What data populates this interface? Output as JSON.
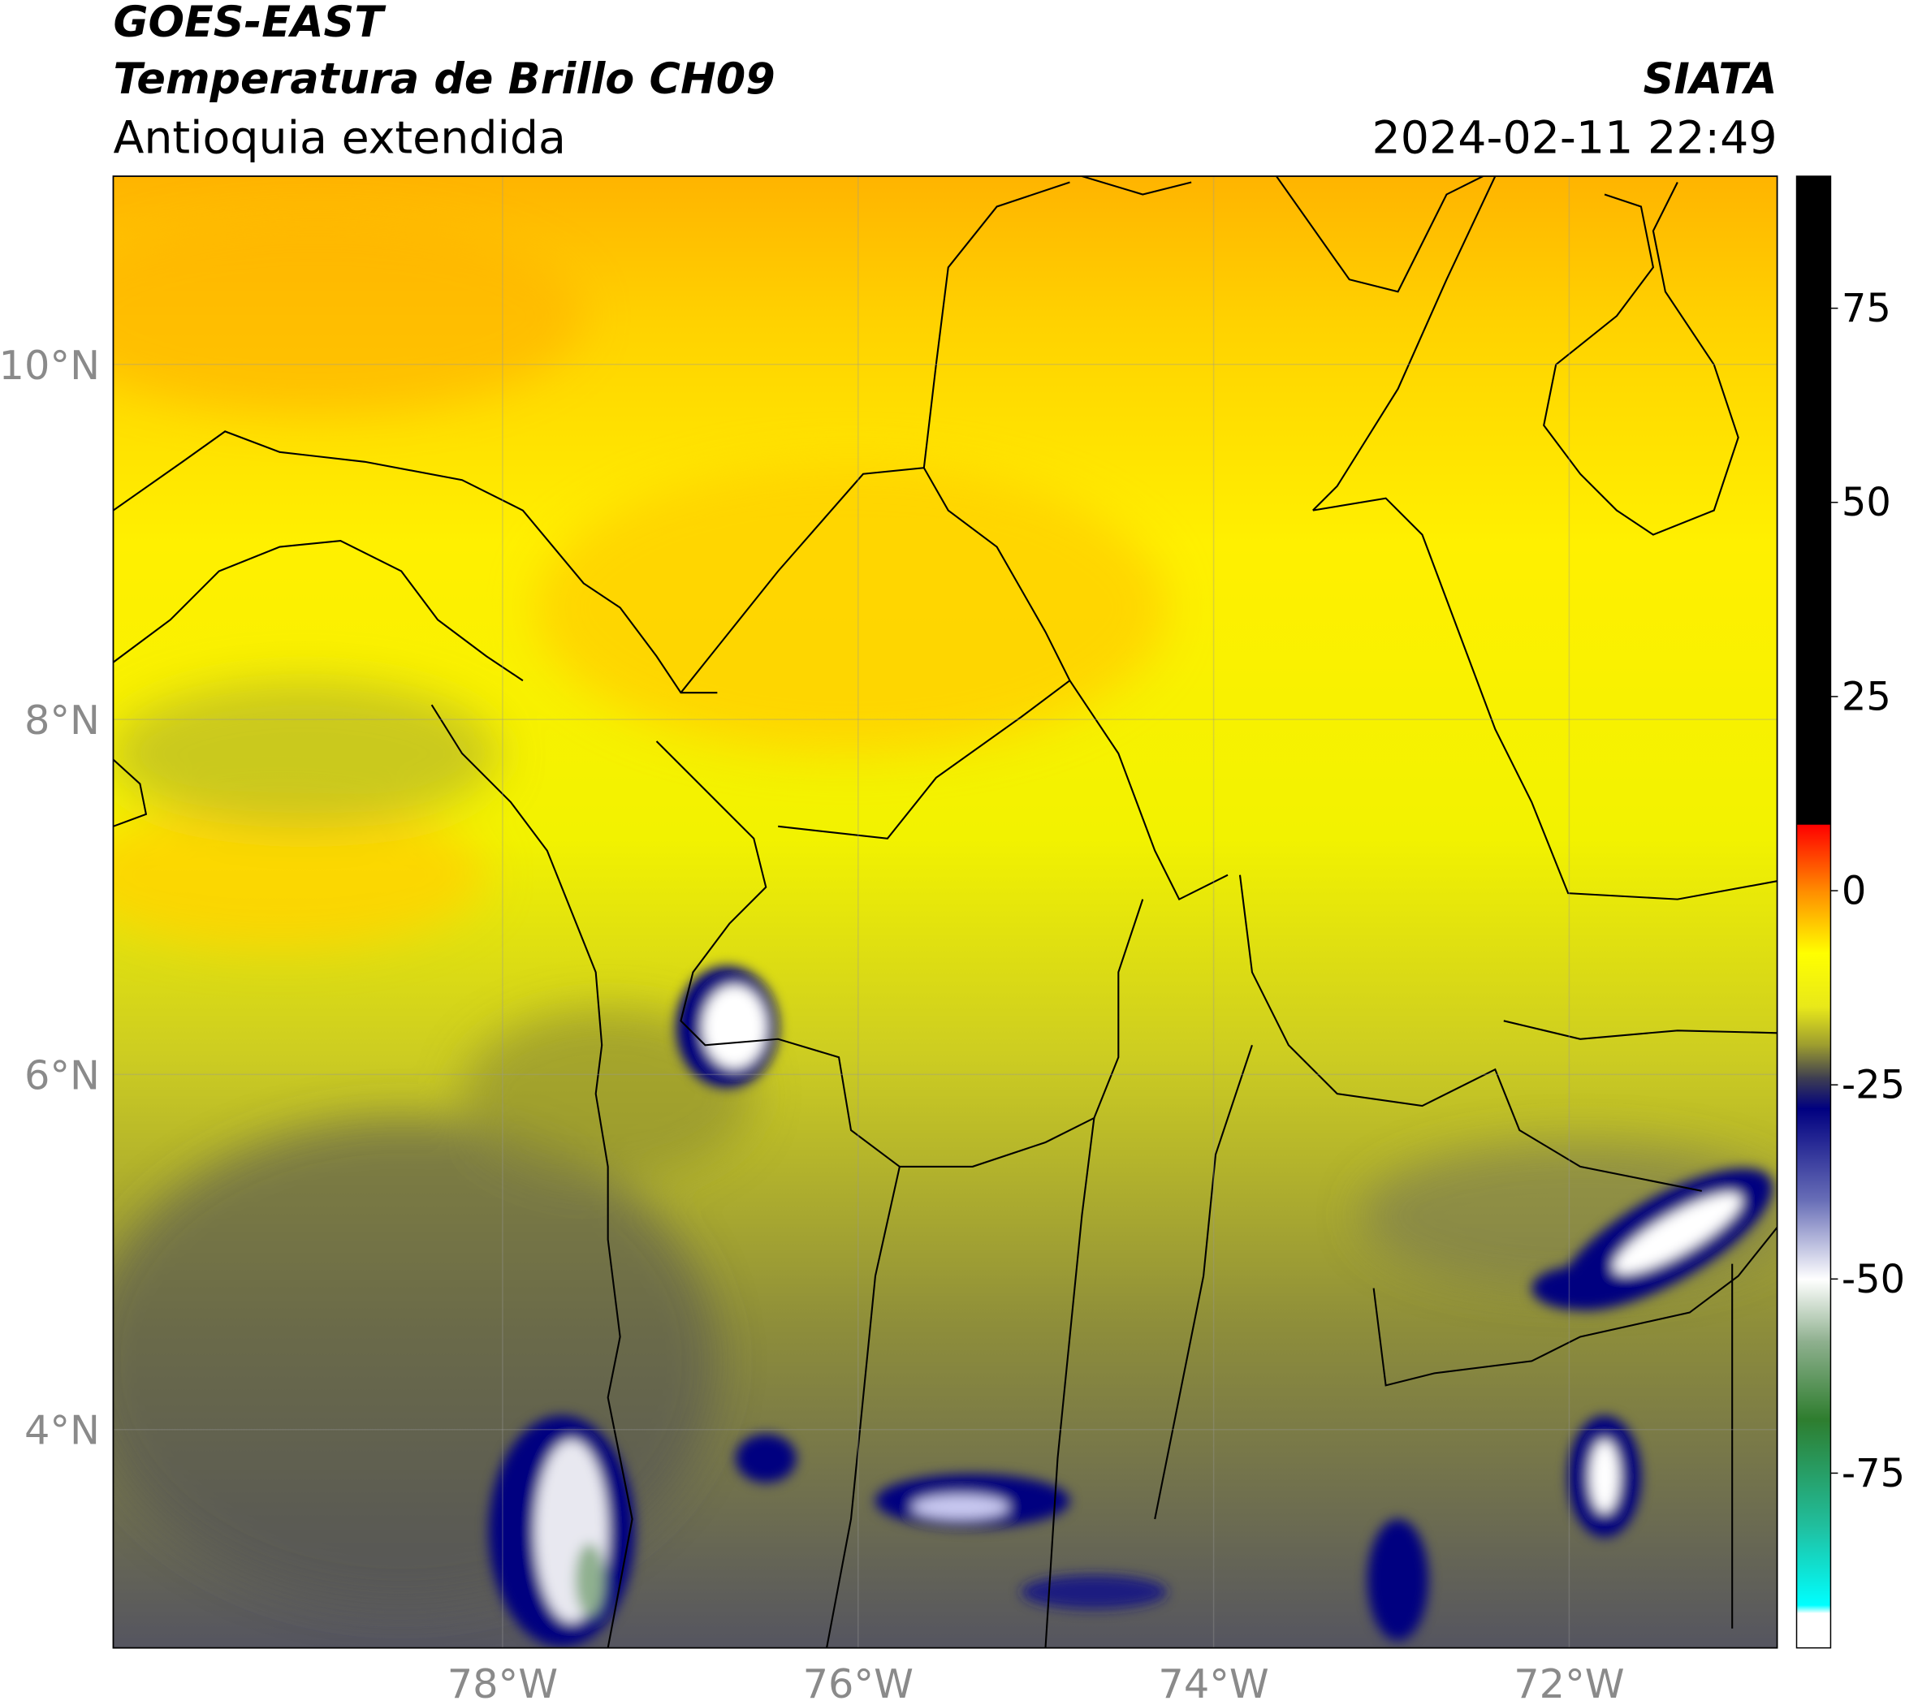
{
  "header": {
    "satellite": "GOES-EAST",
    "product": "Temperatura de Brillo CH09",
    "region": "Antioquia extendida",
    "organization": "SIATA",
    "datetime": "2024-02-11 22:49"
  },
  "map": {
    "xlim": [
      -80.19,
      -70.83
    ],
    "ylim": [
      2.77,
      11.06
    ],
    "grid": true,
    "xticks": [
      {
        "value": -78,
        "label": "78°W"
      },
      {
        "value": -76,
        "label": "76°W"
      },
      {
        "value": -74,
        "label": "74°W"
      },
      {
        "value": -72,
        "label": "72°W"
      }
    ],
    "yticks": [
      {
        "value": 10,
        "label": "10°N"
      },
      {
        "value": 8,
        "label": "8°N"
      },
      {
        "value": 6,
        "label": "6°N"
      },
      {
        "value": 4,
        "label": "4°N"
      }
    ]
  },
  "colorbar": {
    "lim": [
      -97.5,
      92
    ],
    "ticks": [
      75,
      50,
      25,
      0,
      -25,
      -50,
      -75
    ],
    "stops": [
      {
        "value": 92,
        "color": "#000000"
      },
      {
        "value": 8.5,
        "color": "#000000"
      },
      {
        "value": 8.5,
        "color": "#ff0000"
      },
      {
        "value": 0,
        "color": "#ff8c00"
      },
      {
        "value": -8,
        "color": "#ffff00"
      },
      {
        "value": -15,
        "color": "#e8e81a"
      },
      {
        "value": -20,
        "color": "#9a9a30"
      },
      {
        "value": -24,
        "color": "#404050"
      },
      {
        "value": -28,
        "color": "#000080"
      },
      {
        "value": -40,
        "color": "#6a70b8"
      },
      {
        "value": -50,
        "color": "#ffffff"
      },
      {
        "value": -58,
        "color": "#8fb08f"
      },
      {
        "value": -68,
        "color": "#2e7d2e"
      },
      {
        "value": -82,
        "color": "#20c0a0"
      },
      {
        "value": -92,
        "color": "#00ffff"
      },
      {
        "value": -93,
        "color": "#ffffff"
      },
      {
        "value": -97.5,
        "color": "#ffffff"
      }
    ]
  }
}
